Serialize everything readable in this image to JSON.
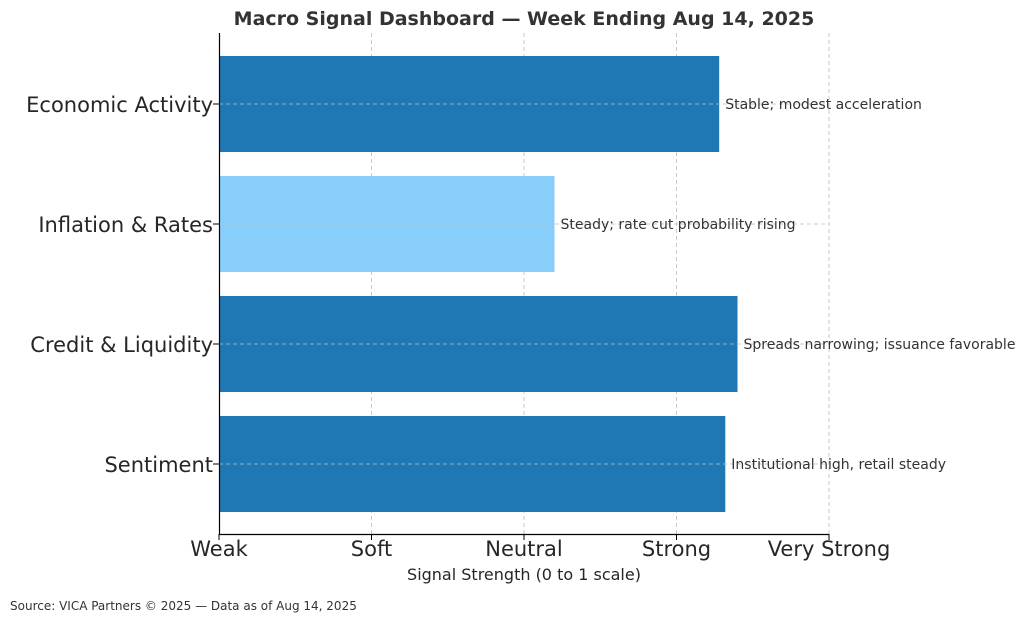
{
  "chart_data": {
    "type": "bar",
    "orientation": "horizontal",
    "title": "Macro Signal Dashboard — Week Ending Aug 14, 2025",
    "xlabel": "Signal Strength (0 to 1 scale)",
    "ylabel": "",
    "xlim": [
      0,
      1
    ],
    "x_ticks": [
      0,
      0.25,
      0.5,
      0.75,
      1.0
    ],
    "x_tick_labels": [
      "Weak",
      "Soft",
      "Neutral",
      "Strong",
      "Very Strong"
    ],
    "grid": true,
    "categories": [
      "Economic Activity",
      "Inflation & Rates",
      "Credit & Liquidity",
      "Sentiment"
    ],
    "values": [
      0.82,
      0.55,
      0.85,
      0.83
    ],
    "colors": [
      "#1f77b4",
      "#87cefa",
      "#1f77b4",
      "#1f77b4"
    ],
    "annotations": [
      "Stable; modest acceleration",
      "Steady; rate cut probability rising",
      "Spreads narrowing; issuance favorable",
      "Institutional high, retail steady"
    ]
  },
  "footer": {
    "source": "Source: VICA Partners © 2025 — Data as of Aug 14, 2025"
  }
}
